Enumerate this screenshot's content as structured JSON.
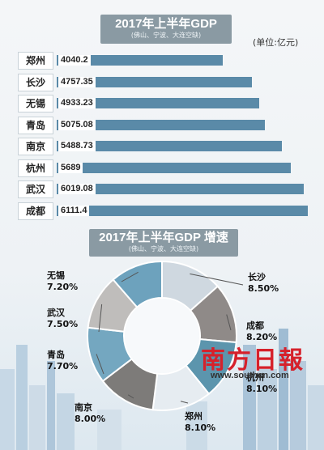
{
  "header_corner": "",
  "chart1": {
    "title": "2017年上半年GDP",
    "subtitle": "(佛山、宁波、大连空缺)",
    "unit": "(单位:亿元)"
  },
  "chart2": {
    "title": "2017年上半年GDP 增速",
    "subtitle": "(佛山、宁波、大连空缺)"
  },
  "brand": "南方日報",
  "site": "www.southcn.com",
  "colors": {
    "bar": "#5a8aa8",
    "title_bg": "#8a9aa3",
    "donut": [
      "#cfd8e0",
      "#8f8a88",
      "#5c95ad",
      "#e6ecf1",
      "#7d7b79",
      "#74a7c0",
      "#bfbdbb",
      "#6da2bd"
    ]
  },
  "chart_data": [
    {
      "type": "bar",
      "orientation": "horizontal",
      "title": "2017年上半年GDP",
      "subtitle": "(佛山、宁波、大连空缺)",
      "unit": "(单位:亿元)",
      "categories": [
        "郑州",
        "长沙",
        "无锡",
        "青岛",
        "南京",
        "杭州",
        "武汉",
        "成都"
      ],
      "values": [
        4040.2,
        4757.35,
        4933.23,
        5075.08,
        5488.73,
        5689,
        6019.08,
        6111.4
      ],
      "value_labels": [
        "4040.2",
        "4757.35",
        "4933.23",
        "5075.08",
        "5488.73",
        "5689",
        "6019.08",
        "6111.4"
      ],
      "xlim": [
        0,
        6111.4
      ]
    },
    {
      "type": "pie",
      "style": "donut",
      "title": "2017年上半年GDP 增速",
      "subtitle": "(佛山、宁波、大连空缺)",
      "categories": [
        "长沙",
        "成都",
        "杭州",
        "郑州",
        "南京",
        "青岛",
        "武汉",
        "无锡"
      ],
      "values": [
        8.5,
        8.2,
        8.1,
        8.1,
        8.0,
        7.7,
        7.5,
        7.2
      ],
      "value_labels": [
        "8.50%",
        "8.20%",
        "8.10%",
        "8.10%",
        "8.00%",
        "7.70%",
        "7.50%",
        "7.20%"
      ]
    }
  ]
}
